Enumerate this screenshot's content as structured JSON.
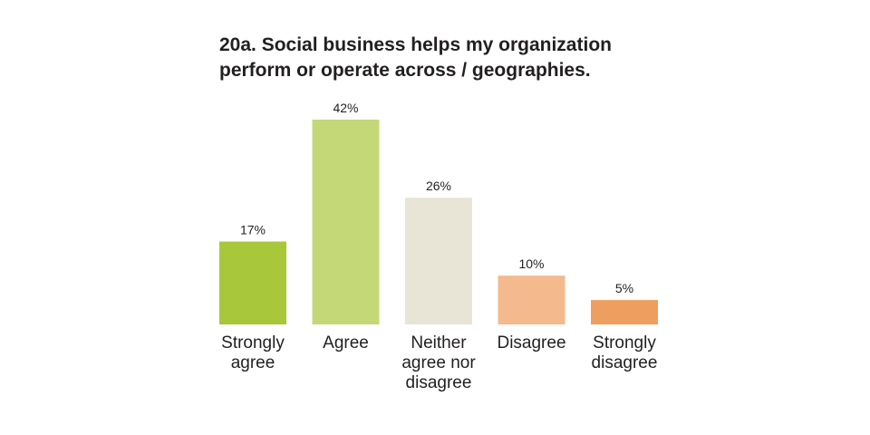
{
  "chart_data": {
    "type": "bar",
    "title_lines": [
      "20a. Social business helps my organization",
      "perform or operate across / geographies."
    ],
    "xlabel": "",
    "ylabel": "",
    "categories": [
      [
        "Strongly",
        "agree"
      ],
      [
        "Agree"
      ],
      [
        "Neither",
        "agree nor",
        "disagree"
      ],
      [
        "Disagree"
      ],
      [
        "Strongly",
        "disagree"
      ]
    ],
    "values": [
      17,
      42,
      26,
      10,
      5
    ],
    "value_labels": [
      "17%",
      "42%",
      "26%",
      "10%",
      "5%"
    ],
    "colors": [
      "#a8c73a",
      "#c4d878",
      "#e8e5d6",
      "#f4b98c",
      "#ee9f5f"
    ],
    "ylim": [
      0,
      42
    ],
    "grid": false,
    "legend": "none"
  }
}
